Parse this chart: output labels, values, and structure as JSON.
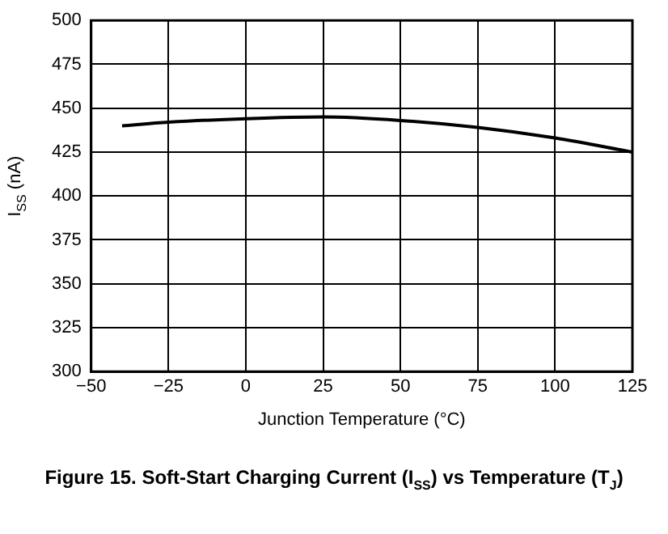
{
  "chart_data": {
    "type": "line",
    "title": "Figure 15. Soft-Start Charging Current (I$_{SS}$) vs Temperature (T$_{J}$)",
    "xlabel": "Junction Temperature (°C)",
    "ylabel": "I$_{SS}$ (nA)",
    "x": [
      -40,
      -25,
      0,
      25,
      50,
      75,
      100,
      125
    ],
    "series": [
      {
        "color": "#000000",
        "values": [
          440,
          442,
          444,
          445,
          443,
          439,
          433,
          425
        ]
      }
    ],
    "xlim": [
      -50,
      125
    ],
    "xticks": [
      -50,
      -25,
      0,
      25,
      50,
      75,
      100,
      125
    ],
    "ylim": [
      300,
      500
    ],
    "yticks": [
      300,
      325,
      350,
      375,
      400,
      425,
      450,
      475,
      500
    ],
    "grid": true,
    "legend": false,
    "marker": "none",
    "line_style": "solid"
  }
}
